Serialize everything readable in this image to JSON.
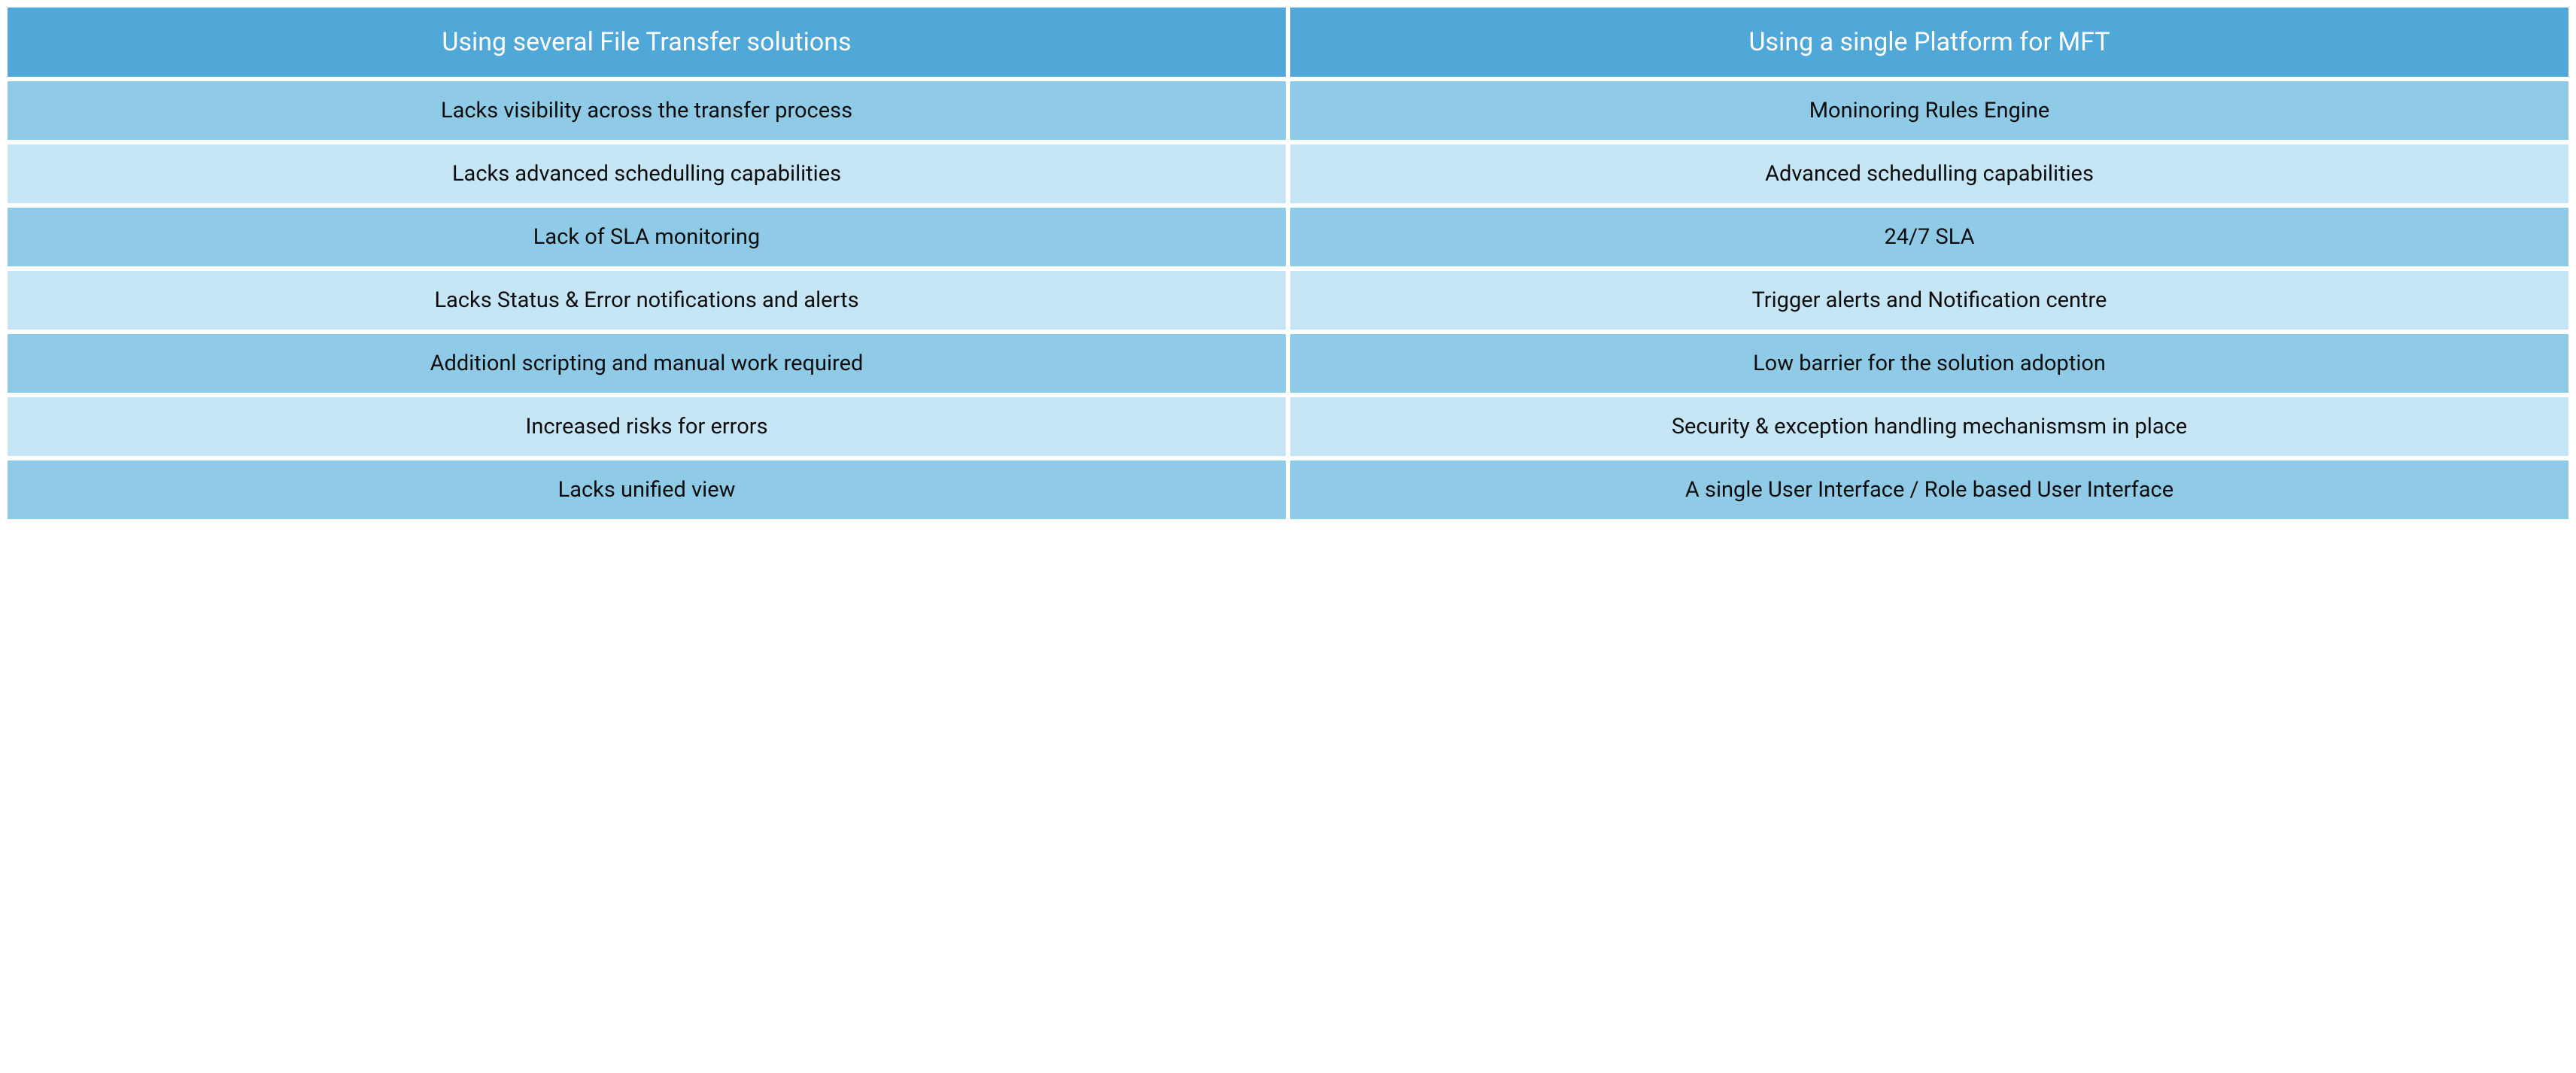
{
  "table": {
    "type": "table",
    "columns": 2,
    "headers": [
      "Using several File Transfer solutions",
      "Using a single Platform for MFT"
    ],
    "rows": [
      [
        "Lacks visibility across the transfer process",
        "Moninoring Rules Engine"
      ],
      [
        "Lacks advanced schedulling capabilities",
        "Advanced schedulling capabilities"
      ],
      [
        "Lack of SLA monitoring",
        "24/7 SLA"
      ],
      [
        "Lacks Status & Error notifications and alerts",
        "Trigger alerts and Notification centre"
      ],
      [
        "Additionl scripting and manual work required",
        "Low barrier for the solution adoption"
      ],
      [
        "Increased risks for errors",
        "Security & exception handling mechanismsm in place"
      ],
      [
        "Lacks unified view",
        "A single User Interface / Role based User Interface"
      ]
    ],
    "styling": {
      "header_bg": "#4fa8d8",
      "header_text": "#ffffff",
      "header_fontsize": 34,
      "row_odd_bg": "#8fcae7",
      "row_even_bg": "#c6e6f5",
      "row_text": "#0d0d0d",
      "row_fontsize": 29,
      "gap": 6,
      "background": "#ffffff",
      "font_family": "sans-serif"
    }
  }
}
